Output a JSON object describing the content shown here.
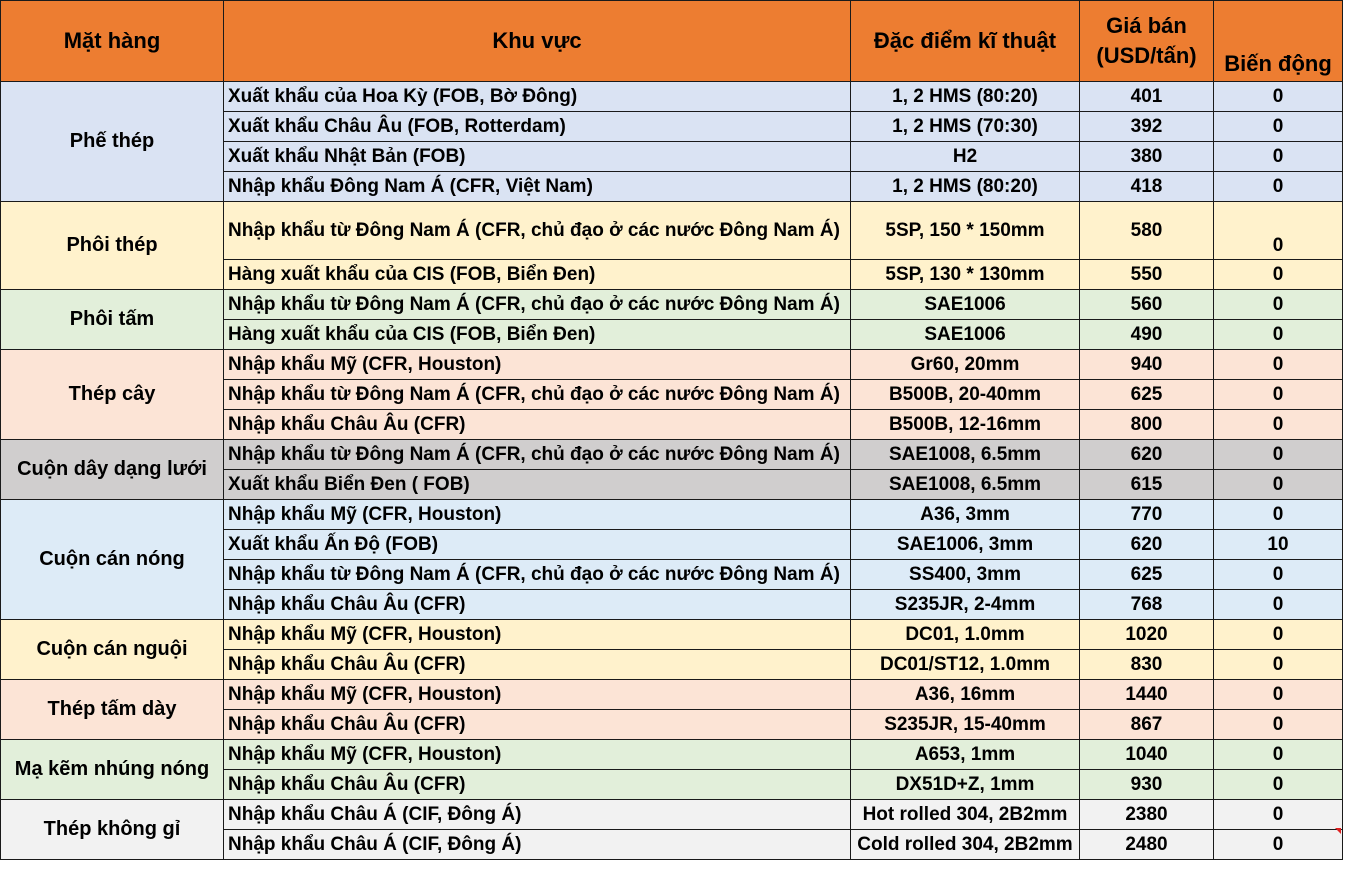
{
  "headers": {
    "mat_hang": "Mặt hàng",
    "khu_vuc": "Khu vực",
    "dac_diem": "Đặc điểm kĩ thuật",
    "gia_ban_line1": "Giá bán",
    "gia_ban_line2": "(USD/tấn)",
    "bien_dong": "Biến động"
  },
  "colors": {
    "header": "#ed7d31",
    "group_colors": [
      "#dae3f3",
      "#fff2cc",
      "#e2efda",
      "#fce4d6",
      "#d0cece",
      "#ddebf7",
      "#fff2cc",
      "#fce4d6",
      "#e2efda",
      "#f2f2f2"
    ]
  },
  "groups": [
    {
      "name": "Phế thép",
      "rows": [
        {
          "region": "Xuất khẩu của Hoa Kỳ (FOB, Bờ Đông)",
          "spec": "1, 2 HMS (80:20)",
          "price": "401",
          "change": "0"
        },
        {
          "region": "Xuất khẩu Châu Âu (FOB, Rotterdam)",
          "spec": "1, 2 HMS (70:30)",
          "price": "392",
          "change": "0"
        },
        {
          "region": "Xuất khẩu Nhật Bản (FOB)",
          "spec": "H2",
          "price": "380",
          "change": "0"
        },
        {
          "region": "Nhập khẩu Đông Nam Á (CFR, Việt Nam)",
          "spec": "1, 2 HMS (80:20)",
          "price": "418",
          "change": "0"
        }
      ]
    },
    {
      "name": "Phôi thép",
      "rows": [
        {
          "region": "Nhập khẩu từ Đông Nam Á (CFR, chủ đạo ở các nước Đông Nam Á)",
          "spec": "5SP, 150 * 150mm",
          "price": "580",
          "change": "0"
        },
        {
          "region": "Hàng xuất khẩu của CIS (FOB, Biển Đen)",
          "spec": "5SP, 130 * 130mm",
          "price": "550",
          "change": "0"
        }
      ]
    },
    {
      "name": "Phôi tấm",
      "rows": [
        {
          "region": "Nhập khẩu từ Đông Nam Á (CFR, chủ đạo ở các nước Đông Nam Á)",
          "spec": "SAE1006",
          "price": "560",
          "change": "0"
        },
        {
          "region": "Hàng xuất khẩu của CIS (FOB, Biển Đen)",
          "spec": "SAE1006",
          "price": "490",
          "change": "0"
        }
      ]
    },
    {
      "name": "Thép cây",
      "rows": [
        {
          "region": "Nhập khẩu Mỹ (CFR, Houston)",
          "spec": "Gr60, 20mm",
          "price": "940",
          "change": "0"
        },
        {
          "region": "Nhập khẩu từ Đông Nam Á (CFR, chủ đạo ở các nước Đông Nam Á)",
          "spec": "B500B, 20-40mm",
          "price": "625",
          "change": "0"
        },
        {
          "region": "Nhập khẩu Châu Âu (CFR)",
          "spec": "B500B, 12-16mm",
          "price": "800",
          "change": "0"
        }
      ]
    },
    {
      "name": "Cuộn dây dạng lưới",
      "rows": [
        {
          "region": "Nhập khẩu từ Đông Nam Á (CFR, chủ đạo ở các nước Đông Nam Á)",
          "spec": "SAE1008, 6.5mm",
          "price": "620",
          "change": "0"
        },
        {
          "region": "Xuất khẩu Biển Đen ( FOB)",
          "spec": "SAE1008, 6.5mm",
          "price": "615",
          "change": "0"
        }
      ]
    },
    {
      "name": "Cuộn cán nóng",
      "rows": [
        {
          "region": "Nhập khẩu Mỹ (CFR, Houston)",
          "spec": "A36, 3mm",
          "price": "770",
          "change": "0"
        },
        {
          "region": "Xuất khẩu Ấn Độ (FOB)",
          "spec": "SAE1006, 3mm",
          "price": "620",
          "change": "10"
        },
        {
          "region": "Nhập khẩu từ Đông Nam Á (CFR, chủ đạo ở các nước Đông Nam Á)",
          "spec": "SS400, 3mm",
          "price": "625",
          "change": "0"
        },
        {
          "region": "Nhập khẩu Châu Âu (CFR)",
          "spec": "S235JR, 2-4mm",
          "price": "768",
          "change": "0"
        }
      ]
    },
    {
      "name": "Cuộn cán nguội",
      "rows": [
        {
          "region": "Nhập khẩu Mỹ (CFR, Houston)",
          "spec": "DC01, 1.0mm",
          "price": "1020",
          "change": "0"
        },
        {
          "region": "Nhập khẩu Châu Âu (CFR)",
          "spec": "DC01/ST12, 1.0mm",
          "price": "830",
          "change": "0"
        }
      ]
    },
    {
      "name": "Thép tấm dày",
      "rows": [
        {
          "region": "Nhập khẩu Mỹ (CFR, Houston)",
          "spec": "A36, 16mm",
          "price": "1440",
          "change": "0"
        },
        {
          "region": "Nhập khẩu Châu Âu (CFR)",
          "spec": "S235JR, 15-40mm",
          "price": "867",
          "change": "0"
        }
      ]
    },
    {
      "name": "Mạ kẽm nhúng nóng",
      "rows": [
        {
          "region": "Nhập khẩu Mỹ (CFR, Houston)",
          "spec": "A653, 1mm",
          "price": "1040",
          "change": "0"
        },
        {
          "region": "Nhập khẩu Châu Âu (CFR)",
          "spec": "DX51D+Z, 1mm",
          "price": "930",
          "change": "0"
        }
      ]
    },
    {
      "name": "Thép không gỉ",
      "rows": [
        {
          "region": "Nhập khẩu Châu Á (CIF, Đông Á)",
          "spec": "Hot rolled 304, 2B2mm",
          "price": "2380",
          "change": "0"
        },
        {
          "region": "Nhập khẩu Châu Á (CIF, Đông Á)",
          "spec": "Cold rolled 304, 2B2mm",
          "price": "2480",
          "change": "0"
        }
      ]
    }
  ]
}
